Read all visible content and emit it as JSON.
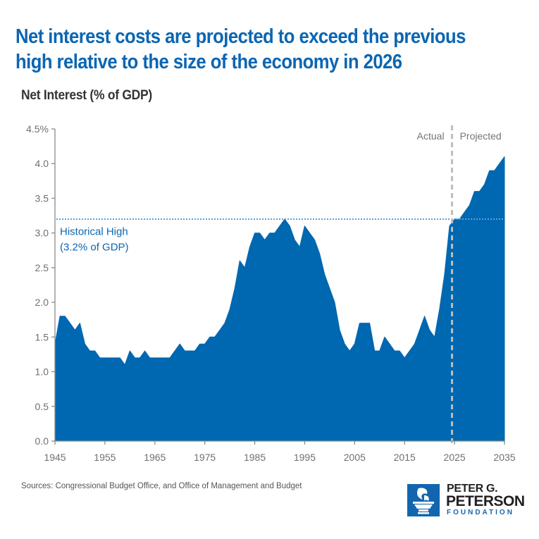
{
  "header": {
    "title_line1": "Net interest costs are projected to exceed the previous",
    "title_line2": "high relative to the size of the economy in 2026",
    "subtitle": "Net Interest (% of GDP)"
  },
  "footer": {
    "source": "Sources: Congressional Budget Office, and Office of Management and Budget",
    "logo": {
      "icon": "torch-icon",
      "line1": "PETER G.",
      "line2": "PETERSON",
      "line3": "FOUNDATION"
    }
  },
  "colors": {
    "area": "#0067b1",
    "title": "#0b66b2",
    "reference_line": "#5aa2dc",
    "divider": "#bdbdbd",
    "axis": "#8a8a8a"
  },
  "chart_data": {
    "type": "area",
    "title": "Net interest costs are projected to exceed the previous high relative to the size of the economy in 2026",
    "subtitle": "Net Interest (% of GDP)",
    "xlabel": "",
    "ylabel": "Net Interest (% of GDP)",
    "xlim": [
      1945,
      2035
    ],
    "ylim": [
      0,
      4.5
    ],
    "grid": false,
    "x_ticks": [
      1945,
      1955,
      1965,
      1975,
      1985,
      1995,
      2005,
      2015,
      2025,
      2035
    ],
    "y_ticks": [
      {
        "value": 0.0,
        "label": "0.0"
      },
      {
        "value": 0.5,
        "label": "0.5"
      },
      {
        "value": 1.0,
        "label": "1.0"
      },
      {
        "value": 1.5,
        "label": "1.5"
      },
      {
        "value": 2.0,
        "label": "2.0"
      },
      {
        "value": 2.5,
        "label": "2.5"
      },
      {
        "value": 3.0,
        "label": "3.0"
      },
      {
        "value": 3.5,
        "label": "3.5"
      },
      {
        "value": 4.0,
        "label": "4.0"
      },
      {
        "value": 4.5,
        "label": "4.5%"
      }
    ],
    "x": [
      1945,
      1946,
      1947,
      1948,
      1949,
      1950,
      1951,
      1952,
      1953,
      1954,
      1955,
      1956,
      1957,
      1958,
      1959,
      1960,
      1961,
      1962,
      1963,
      1964,
      1965,
      1966,
      1967,
      1968,
      1969,
      1970,
      1971,
      1972,
      1973,
      1974,
      1975,
      1976,
      1977,
      1978,
      1979,
      1980,
      1981,
      1982,
      1983,
      1984,
      1985,
      1986,
      1987,
      1988,
      1989,
      1990,
      1991,
      1992,
      1993,
      1994,
      1995,
      1996,
      1997,
      1998,
      1999,
      2000,
      2001,
      2002,
      2003,
      2004,
      2005,
      2006,
      2007,
      2008,
      2009,
      2010,
      2011,
      2012,
      2013,
      2014,
      2015,
      2016,
      2017,
      2018,
      2019,
      2020,
      2021,
      2022,
      2023,
      2024,
      2025,
      2026,
      2027,
      2028,
      2029,
      2030,
      2031,
      2032,
      2033,
      2034,
      2035
    ],
    "series": [
      {
        "name": "Net Interest (% of GDP)",
        "values": [
          1.4,
          1.8,
          1.8,
          1.7,
          1.6,
          1.7,
          1.4,
          1.3,
          1.3,
          1.2,
          1.2,
          1.2,
          1.2,
          1.2,
          1.1,
          1.3,
          1.2,
          1.2,
          1.3,
          1.2,
          1.2,
          1.2,
          1.2,
          1.2,
          1.3,
          1.4,
          1.3,
          1.3,
          1.3,
          1.4,
          1.4,
          1.5,
          1.5,
          1.6,
          1.7,
          1.9,
          2.2,
          2.6,
          2.5,
          2.8,
          3.0,
          3.0,
          2.9,
          3.0,
          3.0,
          3.1,
          3.2,
          3.1,
          2.9,
          2.8,
          3.1,
          3.0,
          2.9,
          2.7,
          2.4,
          2.2,
          2.0,
          1.6,
          1.4,
          1.3,
          1.4,
          1.7,
          1.7,
          1.7,
          1.3,
          1.3,
          1.5,
          1.4,
          1.3,
          1.3,
          1.2,
          1.3,
          1.4,
          1.6,
          1.8,
          1.6,
          1.5,
          1.9,
          2.4,
          3.1,
          3.2,
          3.2,
          3.3,
          3.4,
          3.6,
          3.6,
          3.7,
          3.9,
          3.9,
          4.0,
          4.1
        ]
      }
    ],
    "reference_line": {
      "value": 3.2,
      "label_line1": "Historical High",
      "label_line2": "(3.2% of GDP)",
      "style": "dotted"
    },
    "divider": {
      "x": 2024.5,
      "left_label": "Actual",
      "right_label": "Projected",
      "style": "dashed"
    },
    "legend": "none"
  }
}
